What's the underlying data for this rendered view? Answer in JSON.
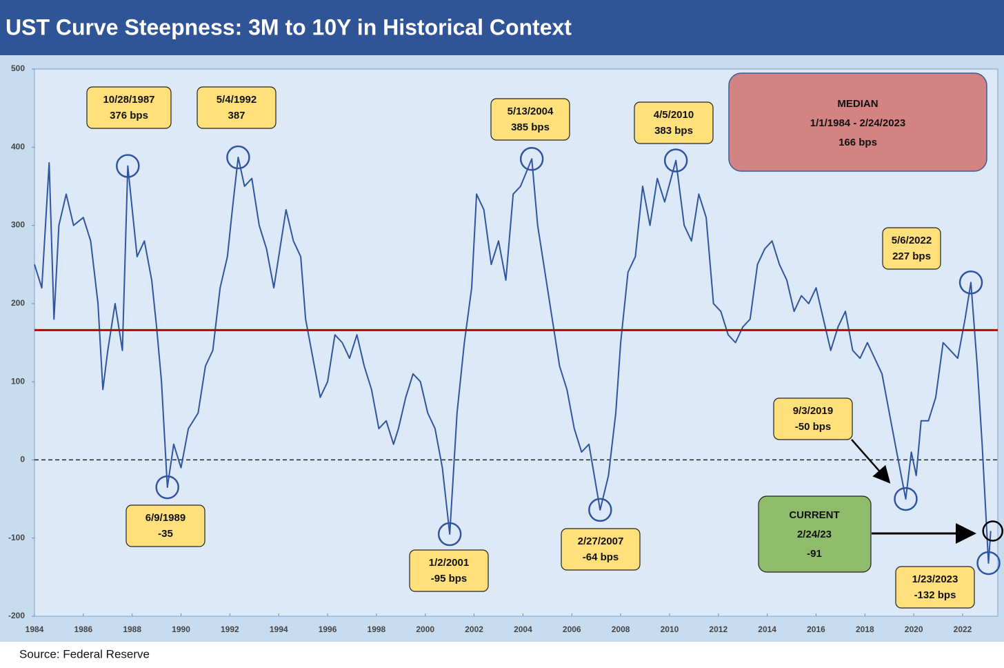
{
  "chart_data": {
    "type": "line",
    "title": "UST Curve Steepness: 3M to 10Y in Historical Context",
    "source": "Source: Federal Reserve",
    "x": [
      1984.0,
      1984.3,
      1984.6,
      1984.8,
      1985.0,
      1985.3,
      1985.6,
      1986.0,
      1986.3,
      1986.6,
      1986.8,
      1987.0,
      1987.3,
      1987.6,
      1987.82,
      1988.2,
      1988.5,
      1988.8,
      1989.0,
      1989.2,
      1989.44,
      1989.7,
      1990.0,
      1990.3,
      1990.7,
      1991.0,
      1991.3,
      1991.6,
      1991.9,
      1992.1,
      1992.34,
      1992.6,
      1992.9,
      1993.2,
      1993.5,
      1993.8,
      1994.0,
      1994.3,
      1994.6,
      1994.9,
      1995.1,
      1995.4,
      1995.7,
      1996.0,
      1996.3,
      1996.6,
      1996.9,
      1997.2,
      1997.5,
      1997.8,
      1998.1,
      1998.4,
      1998.7,
      1998.9,
      1999.2,
      1999.5,
      1999.8,
      2000.1,
      2000.4,
      2000.7,
      2001.0,
      2001.3,
      2001.6,
      2001.9,
      2002.1,
      2002.4,
      2002.7,
      2003.0,
      2003.3,
      2003.6,
      2003.9,
      2004.36,
      2004.6,
      2004.9,
      2005.2,
      2005.5,
      2005.8,
      2006.1,
      2006.4,
      2006.7,
      2007.16,
      2007.5,
      2007.8,
      2008.0,
      2008.3,
      2008.6,
      2008.9,
      2009.2,
      2009.5,
      2009.8,
      2010.26,
      2010.6,
      2010.9,
      2011.2,
      2011.5,
      2011.8,
      2012.1,
      2012.4,
      2012.7,
      2013.0,
      2013.3,
      2013.6,
      2013.9,
      2014.2,
      2014.5,
      2014.8,
      2015.1,
      2015.4,
      2015.7,
      2016.0,
      2016.3,
      2016.6,
      2016.9,
      2017.2,
      2017.5,
      2017.8,
      2018.1,
      2018.4,
      2018.7,
      2019.0,
      2019.3,
      2019.67,
      2019.9,
      2020.1,
      2020.3,
      2020.6,
      2020.9,
      2021.2,
      2021.5,
      2021.8,
      2022.1,
      2022.34,
      2022.6,
      2022.8,
      2023.06,
      2023.15
    ],
    "series": [
      {
        "color": "#2f54a0",
        "values": [
          250,
          220,
          380,
          180,
          300,
          340,
          300,
          310,
          280,
          200,
          90,
          140,
          200,
          140,
          376,
          260,
          280,
          230,
          170,
          100,
          -35,
          20,
          -10,
          40,
          60,
          120,
          140,
          220,
          260,
          320,
          387,
          350,
          360,
          300,
          270,
          220,
          260,
          320,
          280,
          260,
          180,
          130,
          80,
          100,
          160,
          150,
          130,
          160,
          120,
          90,
          40,
          50,
          20,
          40,
          80,
          110,
          100,
          60,
          40,
          -10,
          -95,
          60,
          150,
          220,
          340,
          320,
          250,
          280,
          230,
          340,
          350,
          385,
          300,
          240,
          180,
          120,
          90,
          40,
          10,
          20,
          -64,
          -20,
          60,
          150,
          240,
          260,
          350,
          300,
          360,
          330,
          383,
          300,
          280,
          340,
          310,
          200,
          190,
          160,
          150,
          170,
          180,
          250,
          270,
          280,
          250,
          230,
          190,
          210,
          200,
          220,
          180,
          140,
          170,
          190,
          140,
          130,
          150,
          130,
          110,
          60,
          10,
          -50,
          10,
          -20,
          50,
          50,
          80,
          150,
          140,
          130,
          180,
          227,
          120,
          20,
          -132,
          -91
        ]
      }
    ],
    "median_line": 166,
    "median_color": "#c00000",
    "zero_line": 0,
    "xlim": [
      1984,
      2023.44
    ],
    "ylim": [
      -200,
      500
    ],
    "xticks": [
      1984,
      1986,
      1988,
      1990,
      1992,
      1994,
      1996,
      1998,
      2000,
      2002,
      2004,
      2006,
      2008,
      2010,
      2012,
      2014,
      2016,
      2018,
      2020,
      2022
    ],
    "yticks": [
      500,
      400,
      300,
      200,
      100,
      0,
      -100,
      -200
    ],
    "annotations": [
      {
        "label": "10/28/1987",
        "text": "376 bps"
      },
      {
        "label": "5/4/1992",
        "text": "387"
      },
      {
        "label": "6/9/1989",
        "text": "-35"
      },
      {
        "label": "1/2/2001",
        "text": "-95 bps"
      },
      {
        "label": "5/13/2004",
        "text": "385 bps"
      },
      {
        "label": "2/27/2007",
        "text": "-64 bps"
      },
      {
        "label": "4/5/2010",
        "text": "383 bps"
      },
      {
        "label": "9/3/2019",
        "text": "-50 bps"
      },
      {
        "label": "5/6/2022",
        "text": "227 bps"
      },
      {
        "label": "1/23/2023",
        "text": "-132 bps"
      }
    ],
    "median_box": [
      "MEDIAN",
      "1/1/1984 - 2/24/2023",
      "166 bps"
    ],
    "current_box": [
      "CURRENT",
      "2/24/23",
      "-91"
    ]
  }
}
